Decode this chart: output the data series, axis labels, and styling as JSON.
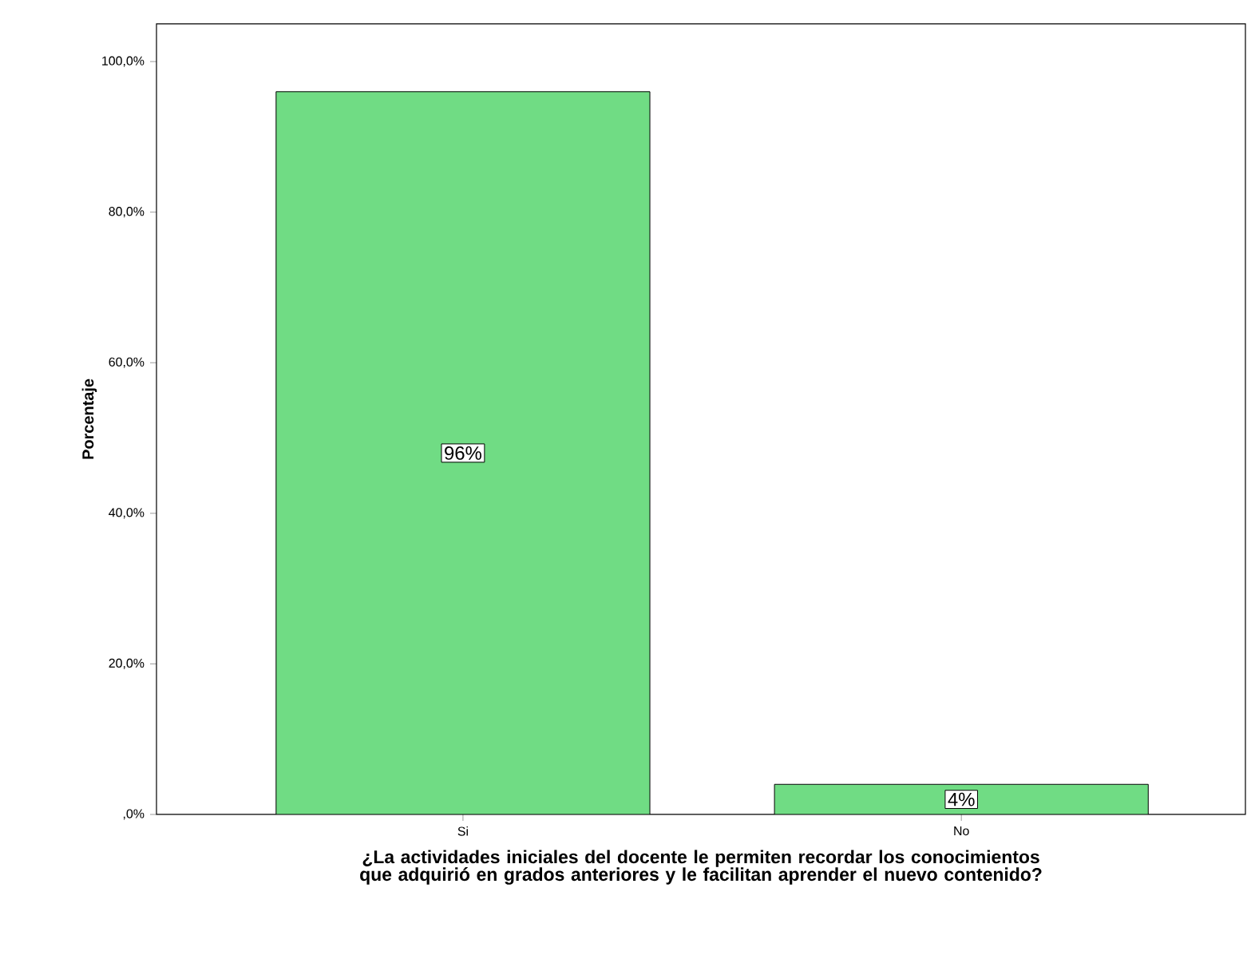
{
  "chart_data": {
    "type": "bar",
    "xlabel": "¿La actividades iniciales del  docente le permiten recordar los conocimientos que adquirió en grados anteriores y le facilitan aprender el nuevo contenido?",
    "ylabel": "Porcentaje",
    "categories": [
      "Si",
      "No"
    ],
    "values": [
      96,
      4
    ],
    "value_labels": [
      "96%",
      "4%"
    ],
    "color": "#70dc84",
    "ylim": [
      0,
      105
    ],
    "yticks": [
      {
        "value": 0,
        "label": ",0%"
      },
      {
        "value": 20,
        "label": "20,0%"
      },
      {
        "value": 40,
        "label": "40,0%"
      },
      {
        "value": 60,
        "label": "60,0%"
      },
      {
        "value": 80,
        "label": "80,0%"
      },
      {
        "value": 100,
        "label": "100,0%"
      }
    ],
    "grid": false
  }
}
